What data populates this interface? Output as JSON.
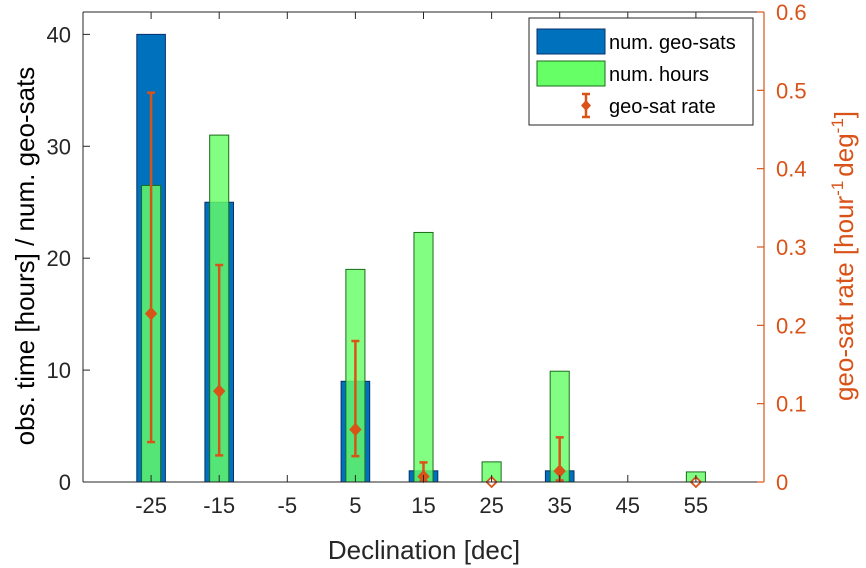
{
  "chart_data": {
    "type": "bar",
    "xlabel": "Declination [dec]",
    "ylabel_left": "obs. time [hours] / num. geo-sats",
    "ylabel_right": "geo-sat rate [hour",
    "ylabel_right_sup": "-1",
    "ylabel_right_unit": "deg",
    "ylabel_right_sup2": "-1",
    "ylabel_right_close": "]",
    "categories": [
      "-25",
      "-15",
      "-5",
      "5",
      "15",
      "25",
      "35",
      "45",
      "55"
    ],
    "x": [
      -25,
      -15,
      -5,
      5,
      15,
      25,
      35,
      45,
      55
    ],
    "xlim": [
      -35,
      65
    ],
    "ylim_left": [
      0,
      42
    ],
    "yticks_left": [
      0,
      10,
      20,
      30,
      40
    ],
    "ylim_right": [
      0,
      0.6
    ],
    "yticks_right": [
      0,
      0.1,
      0.2,
      0.3,
      0.4,
      0.5,
      0.6
    ],
    "series": [
      {
        "name": "num. geo-sats",
        "axis": "left",
        "type": "bar",
        "color": "#0072BD",
        "edge": "#08306b",
        "values": [
          40,
          25,
          0,
          9,
          1,
          0,
          1,
          0,
          0
        ]
      },
      {
        "name": "num. hours",
        "axis": "left",
        "type": "bar",
        "color": "#66FF66",
        "edge": "#1b6b1b",
        "values": [
          26.5,
          31,
          0,
          19,
          22.3,
          1.8,
          9.9,
          0,
          0.9
        ]
      },
      {
        "name": "geo-sat rate",
        "axis": "right",
        "type": "errorbar",
        "color": "#D95319",
        "values": [
          0.215,
          0.116,
          null,
          0.067,
          0.007,
          0,
          0.014,
          null,
          0
        ],
        "lower": [
          0.051,
          0.034,
          null,
          0.033,
          0.001,
          0,
          0.002,
          null,
          0
        ],
        "upper": [
          0.497,
          0.277,
          null,
          0.18,
          0.025,
          0,
          0.057,
          null,
          0
        ]
      }
    ],
    "legend": {
      "position": "top-right",
      "entries": [
        "num. geo-sats",
        "num. hours",
        "geo-sat rate"
      ]
    }
  }
}
